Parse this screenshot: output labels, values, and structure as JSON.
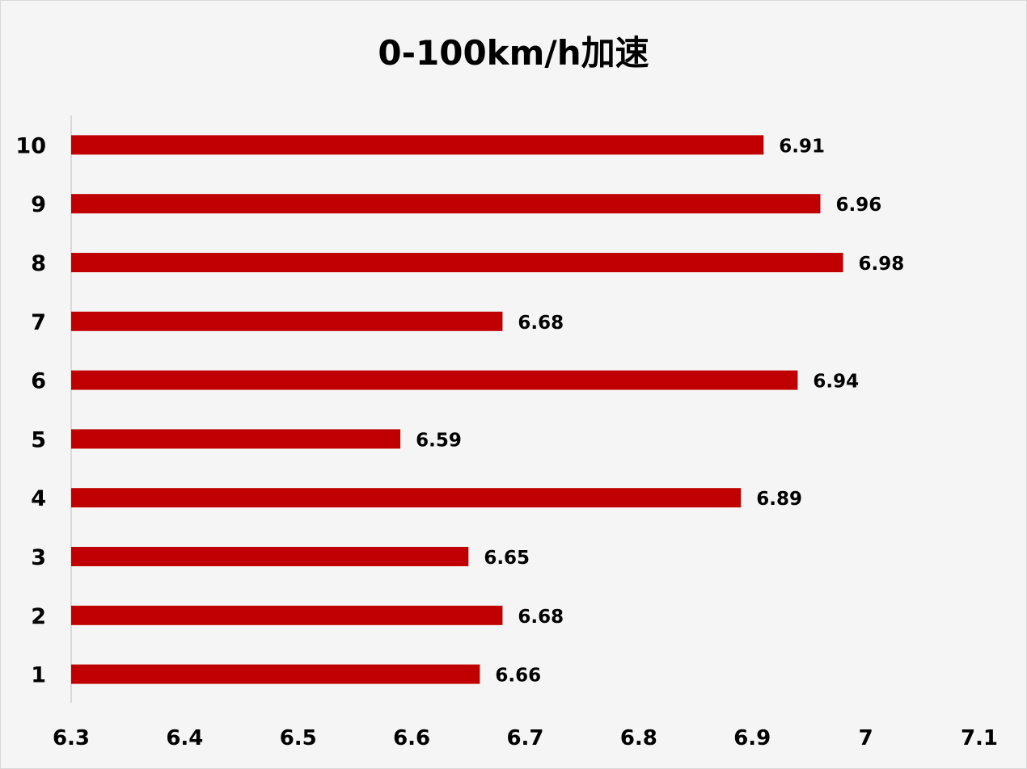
{
  "chart_data": {
    "type": "bar",
    "orientation": "horizontal",
    "title": "0-100km/h加速",
    "categories": [
      "1",
      "2",
      "3",
      "4",
      "5",
      "6",
      "7",
      "8",
      "9",
      "10"
    ],
    "values": [
      6.66,
      6.68,
      6.65,
      6.89,
      6.59,
      6.94,
      6.68,
      6.98,
      6.96,
      6.91
    ],
    "data_labels": [
      "6.66",
      "6.68",
      "6.65",
      "6.89",
      "6.59",
      "6.94",
      "6.68",
      "6.98",
      "6.96",
      "6.91"
    ],
    "xlim": [
      6.3,
      7.1
    ],
    "x_ticks": [
      6.3,
      6.4,
      6.5,
      6.6,
      6.7,
      6.8,
      6.9,
      7,
      7.1
    ],
    "x_tick_labels": [
      "6.3",
      "6.4",
      "6.5",
      "6.6",
      "6.7",
      "6.8",
      "6.9",
      "7",
      "7.1"
    ],
    "xlabel": "",
    "ylabel": "",
    "grid": false,
    "legend": "none",
    "bar_color": "#c00000",
    "background_color": "#f5f5f5"
  }
}
